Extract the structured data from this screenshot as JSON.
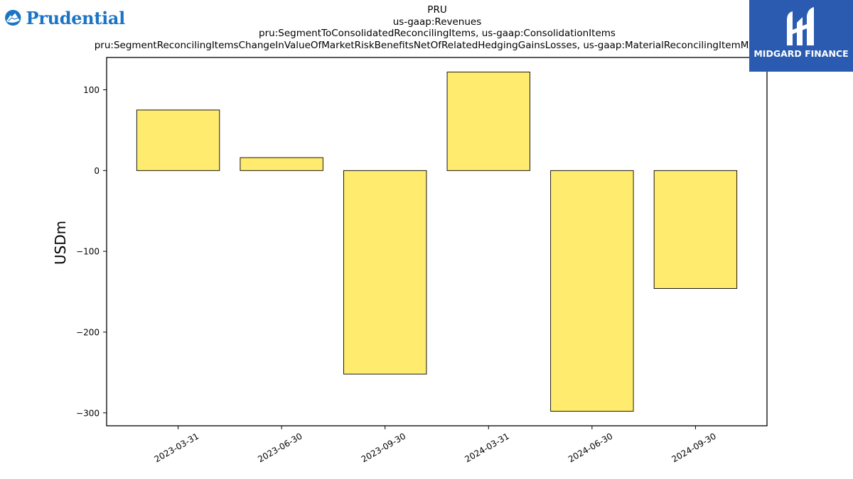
{
  "header": {
    "title_lines": [
      "PRU",
      "us-gaap:Revenues",
      "pru:SegmentToConsolidatedReconcilingItems, us-gaap:ConsolidationItems",
      "pru:SegmentReconcilingItemsChangeInValueOfMarketRiskBenefitsNetOfRelatedHedgingGainsLosses, us-gaap:MaterialReconcilingItemMember"
    ]
  },
  "logos": {
    "left_brand": "Prudential",
    "right_brand": "MIDGARD FINANCE",
    "left_color": "#1b74c5",
    "right_bg": "#2a5bb0"
  },
  "chart_data": {
    "type": "bar",
    "categories": [
      "2023-03-31",
      "2023-06-30",
      "2023-09-30",
      "2024-03-31",
      "2024-06-30",
      "2024-09-30"
    ],
    "values": [
      75,
      16,
      -252,
      122,
      -298,
      -146
    ],
    "title": "",
    "xlabel": "",
    "ylabel": "USDm",
    "ylim": [
      -316,
      140
    ],
    "yticks": [
      100,
      0,
      -100,
      -200,
      -300
    ],
    "ytick_labels": [
      "100",
      "0",
      "−100",
      "−200",
      "−300"
    ],
    "bar_color": "#ffec6e",
    "bar_edge": "#000000",
    "grid": false,
    "legend": "none"
  }
}
